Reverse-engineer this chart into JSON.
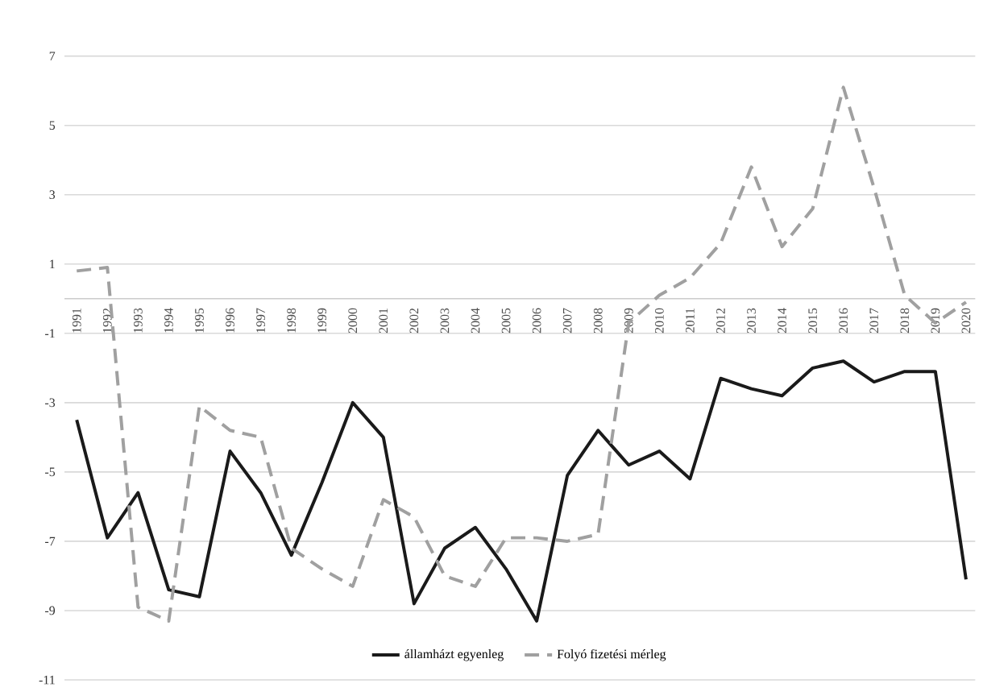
{
  "chart_data": {
    "type": "line",
    "categories": [
      "1991",
      "1992",
      "1993",
      "1994",
      "1995",
      "1996",
      "1997",
      "1998",
      "1999",
      "2000",
      "2001",
      "2002",
      "2003",
      "2004",
      "2005",
      "2006",
      "2007",
      "2008",
      "2009",
      "2010",
      "2011",
      "2012",
      "2013",
      "2014",
      "2015",
      "2016",
      "2017",
      "2018",
      "2019",
      "2020"
    ],
    "series": [
      {
        "name": "államházt egyenleg",
        "color": "#1a1a1a",
        "line_style": "solid",
        "values": [
          -3.5,
          -6.9,
          -5.6,
          -8.4,
          -8.6,
          -4.4,
          -5.6,
          -7.4,
          -5.3,
          -3.0,
          -4.0,
          -8.8,
          -7.2,
          -6.6,
          -7.8,
          -9.3,
          -5.1,
          -3.8,
          -4.8,
          -4.4,
          -5.2,
          -2.3,
          -2.6,
          -2.8,
          -2.0,
          -1.8,
          -2.4,
          -2.1,
          -2.1,
          -8.1
        ]
      },
      {
        "name": "Folyó fizetési mérleg",
        "color": "#a0a0a0",
        "line_style": "dashed",
        "values": [
          0.8,
          0.9,
          -8.9,
          -9.3,
          -3.1,
          -3.8,
          -4.0,
          -7.2,
          -7.8,
          -8.3,
          -5.8,
          -6.3,
          -8.0,
          -8.3,
          -6.9,
          -6.9,
          -7.0,
          -6.8,
          -0.7,
          0.1,
          0.6,
          1.6,
          3.8,
          1.5,
          2.6,
          6.1,
          3.2,
          0.1,
          -0.7,
          -0.1
        ]
      }
    ],
    "ylim": [
      -11,
      7
    ],
    "yticks": [
      -11,
      -9,
      -7,
      -5,
      -3,
      -1,
      1,
      3,
      5,
      7
    ],
    "grid": "y",
    "legend": "bottom",
    "marker": "none"
  }
}
